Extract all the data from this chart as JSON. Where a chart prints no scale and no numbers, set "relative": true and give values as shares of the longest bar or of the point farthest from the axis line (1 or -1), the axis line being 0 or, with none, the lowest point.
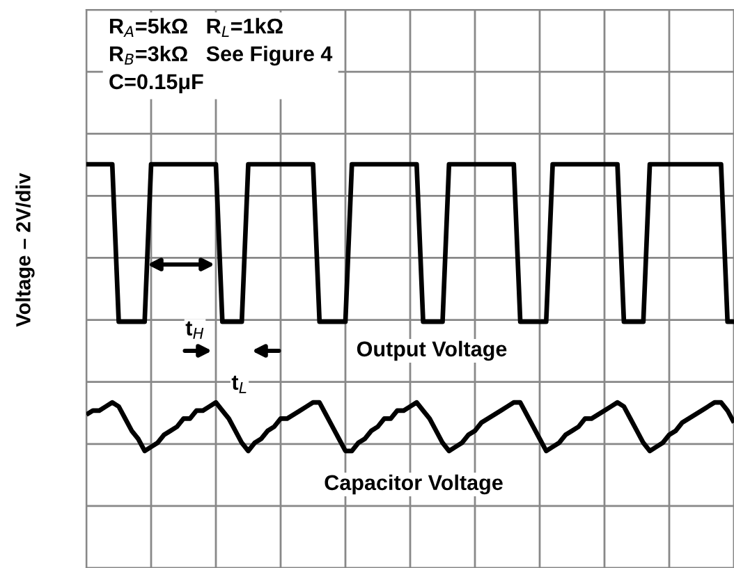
{
  "chart_data": {
    "type": "line",
    "ylabel": "Voltage – 2V/div",
    "relative": true,
    "grid": true,
    "categories": [
      null,
      null,
      null,
      null,
      null,
      null,
      null,
      null,
      null,
      null,
      null,
      null,
      null,
      null,
      null,
      null,
      null,
      null,
      null,
      null,
      null,
      null,
      null,
      null,
      null,
      null,
      null,
      null,
      null,
      null,
      null,
      null,
      null,
      null,
      null,
      null,
      null,
      null,
      null,
      null,
      null,
      null,
      null,
      null,
      null,
      null,
      null,
      null,
      null,
      null,
      null,
      null,
      null,
      null,
      null,
      null,
      null,
      null,
      null,
      null,
      null,
      null,
      null,
      null,
      null,
      null,
      null,
      null,
      null,
      null,
      null,
      null,
      null,
      null,
      null,
      null,
      null,
      null,
      null,
      null,
      null,
      null,
      null,
      null,
      null,
      null,
      null,
      null,
      null,
      null,
      null,
      null,
      null,
      null,
      null,
      null,
      null,
      null,
      null,
      null,
      null
    ],
    "annotations": [
      "R$_{A}$=5kΩ   R$_{L}$=1kΩ\nR$_{B}$=3kΩ   See Figure 4\nC=0.15μF",
      "t$_{H}$",
      "t$_{L}$"
    ],
    "series": [
      {
        "name": "Output Voltage",
        "color": "#000000",
        "values": [
          1,
          1,
          1,
          1,
          1,
          0.61,
          0.61,
          0.61,
          0.61,
          0.61,
          1,
          1,
          1,
          1,
          1,
          1,
          1,
          1,
          1,
          1,
          1,
          0.61,
          0.61,
          0.61,
          0.61,
          1,
          1,
          1,
          1,
          1,
          1,
          1,
          1,
          1,
          1,
          1,
          0.61,
          0.61,
          0.61,
          0.61,
          0.61,
          1,
          1,
          1,
          1,
          1,
          1,
          1,
          1,
          1,
          1,
          1,
          0.61,
          0.61,
          0.61,
          0.61,
          1,
          1,
          1,
          1,
          1,
          1,
          1,
          1,
          1,
          1,
          1,
          0.61,
          0.61,
          0.61,
          0.61,
          0.61,
          1,
          1,
          1,
          1,
          1,
          1,
          1,
          1,
          1,
          1,
          1,
          0.61,
          0.61,
          0.61,
          0.61,
          1,
          1,
          1,
          1,
          1,
          1,
          1,
          1,
          1,
          1,
          1,
          1,
          0.61,
          0.61
        ]
      },
      {
        "name": "Capacitor Voltage",
        "color": "#000000",
        "values": [
          0.38,
          0.39,
          0.39,
          0.4,
          0.41,
          0.4,
          0.37,
          0.34,
          0.32,
          0.29,
          0.3,
          0.31,
          0.33,
          0.34,
          0.35,
          0.37,
          0.37,
          0.39,
          0.39,
          0.4,
          0.41,
          0.39,
          0.37,
          0.34,
          0.31,
          0.29,
          0.31,
          0.32,
          0.34,
          0.35,
          0.37,
          0.37,
          0.38,
          0.39,
          0.4,
          0.41,
          0.41,
          0.38,
          0.35,
          0.32,
          0.29,
          0.29,
          0.31,
          0.32,
          0.34,
          0.35,
          0.37,
          0.37,
          0.39,
          0.39,
          0.4,
          0.41,
          0.39,
          0.37,
          0.34,
          0.31,
          0.29,
          0.3,
          0.31,
          0.33,
          0.34,
          0.36,
          0.37,
          0.38,
          0.39,
          0.4,
          0.41,
          0.41,
          0.38,
          0.35,
          0.32,
          0.29,
          0.3,
          0.31,
          0.33,
          0.34,
          0.35,
          0.37,
          0.37,
          0.38,
          0.39,
          0.4,
          0.41,
          0.4,
          0.37,
          0.34,
          0.31,
          0.29,
          0.3,
          0.31,
          0.33,
          0.34,
          0.36,
          0.37,
          0.38,
          0.39,
          0.4,
          0.41,
          0.41,
          0.39,
          0.36
        ]
      }
    ]
  }
}
